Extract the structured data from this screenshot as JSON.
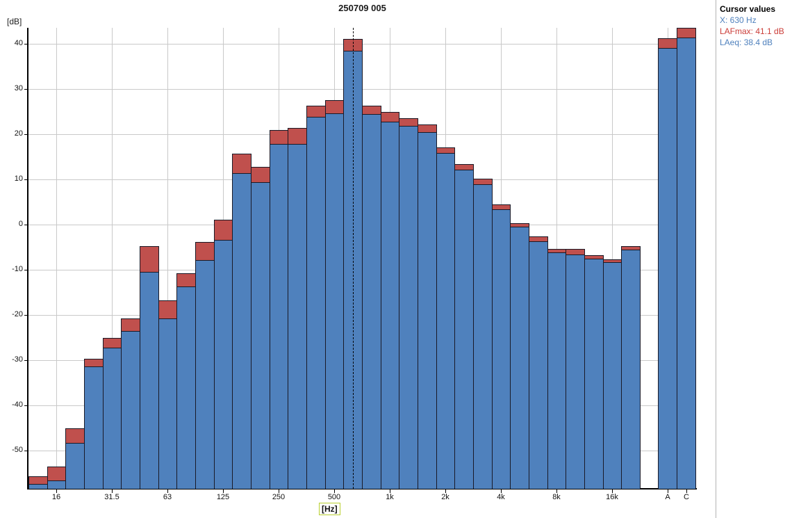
{
  "title": "250709 005",
  "y_axis": {
    "unit_label": "[dB]",
    "ticks": [
      40,
      30,
      20,
      10,
      0,
      -10,
      -20,
      -30,
      -40,
      -50
    ]
  },
  "x_axis": {
    "unit_label": "[Hz]",
    "tick_labels": [
      "16",
      "31.5",
      "63",
      "125",
      "250",
      "500",
      "1k",
      "2k",
      "4k",
      "8k",
      "16k",
      "A",
      "C"
    ]
  },
  "cursor_panel": {
    "heading": "Cursor values",
    "x_line": "X: 630 Hz",
    "lafmax_line": "LAFmax: 41.1 dB",
    "laeq_line": "LAeq: 38.4 dB"
  },
  "colors": {
    "bar_fill": "#4f81bd",
    "bar_max_fill": "#c0504d",
    "bar_border": "#191926",
    "grid": "#c9c9c9",
    "axis": "#000000",
    "panel_text_blue": "#4f81bd",
    "panel_text_red": "#cb3d38",
    "panel_divider": "#b4b4b4",
    "hz_highlight_border": "#b9cf2f"
  },
  "chart_data": {
    "type": "bar",
    "title": "250709 005",
    "xlabel": "[Hz]",
    "ylabel": "[dB]",
    "ylim": [
      -58.4,
      43.5
    ],
    "grid": true,
    "legend": "none",
    "cursor_band": "630",
    "cursor_values": {
      "x_hz": 630,
      "lafmax_db": 41.1,
      "laeq_db": 38.4
    },
    "categories": [
      "12.5",
      "16",
      "20",
      "25",
      "31.5",
      "40",
      "50",
      "63",
      "80",
      "100",
      "125",
      "160",
      "200",
      "250",
      "315",
      "400",
      "500",
      "630",
      "800",
      "1k",
      "1.25k",
      "1.6k",
      "2k",
      "2.5k",
      "3.15k",
      "4k",
      "5k",
      "6.3k",
      "8k",
      "10k",
      "12.5k",
      "16k",
      "20k",
      "A",
      "C"
    ],
    "series": [
      {
        "name": "LAeq",
        "values": [
          -57.4,
          -56.5,
          -48.2,
          -31.4,
          -27.2,
          -23.5,
          -10.4,
          -20.8,
          -13.7,
          -7.9,
          -3.4,
          11.4,
          9.4,
          17.8,
          17.9,
          23.9,
          24.6,
          38.4,
          24.4,
          22.8,
          21.9,
          20.5,
          15.8,
          12.2,
          8.9,
          3.4,
          -0.5,
          -3.7,
          -6.2,
          -6.6,
          -7.5,
          -8.3,
          -5.5,
          39.1,
          41.4
        ]
      },
      {
        "name": "LAFmax",
        "values": [
          -55.6,
          -53.5,
          -45.1,
          -29.7,
          -25.1,
          -20.8,
          -4.8,
          -16.8,
          -10.8,
          -3.9,
          1.1,
          15.7,
          12.8,
          20.9,
          21.4,
          26.3,
          27.5,
          41.1,
          26.3,
          24.9,
          23.5,
          22.2,
          17.1,
          13.4,
          10.2,
          4.5,
          0.3,
          -2.6,
          -5.4,
          -5.4,
          -6.7,
          -7.7,
          -4.8,
          41.2,
          43.7
        ]
      }
    ]
  }
}
